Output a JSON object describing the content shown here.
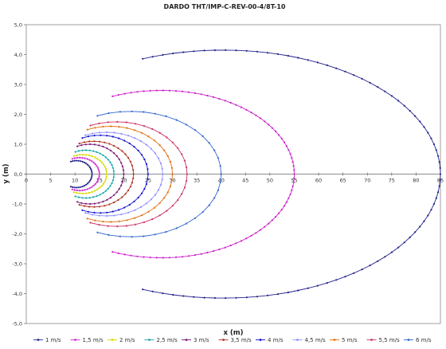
{
  "chart_data": {
    "type": "line",
    "title": "DARDO THT/IMP-C-REV-00-4/8T-10",
    "xlabel": "x (m)",
    "ylabel": "y (m)",
    "xlim": [
      0,
      85
    ],
    "ylim": [
      -5.0,
      5.0
    ],
    "xticks": [
      "0",
      "5",
      "10",
      "15",
      "20",
      "25",
      "30",
      "35",
      "40",
      "45",
      "50",
      "55",
      "60",
      "65",
      "70",
      "75",
      "80",
      "85"
    ],
    "yticks": [
      "5,0",
      "4,0",
      "3,0",
      "2,0",
      "1,0",
      "0,0",
      "-1,0",
      "-2,0",
      "-3,0",
      "-4,0",
      "-5,0"
    ],
    "grid": false,
    "legend_position": "bottom",
    "series": [
      {
        "name": "1 m/s",
        "color": "#2a2a8c",
        "marker": "circle",
        "x0": 8,
        "x_end": 13.5,
        "y_max": 0.45
      },
      {
        "name": "1,5 m/s",
        "color": "#d02bd0",
        "marker": "square",
        "x0": 8,
        "x_end": 15,
        "y_max": 0.55
      },
      {
        "name": "2 m/s",
        "color": "#d8d800",
        "marker": "triangle",
        "x0": 8,
        "x_end": 16.5,
        "y_max": 0.65
      },
      {
        "name": "2,5 m/s",
        "color": "#1aa8a8",
        "marker": "x",
        "x0": 8,
        "x_end": 18,
        "y_max": 0.8
      },
      {
        "name": "3 m/s",
        "color": "#7a1a7a",
        "marker": "star",
        "x0": 8,
        "x_end": 20,
        "y_max": 1.0
      },
      {
        "name": "3,5 m/s",
        "color": "#b03020",
        "marker": "circle",
        "x0": 8,
        "x_end": 22,
        "y_max": 1.1
      },
      {
        "name": "4 m/s",
        "color": "#1010d0",
        "marker": "plus",
        "x0": 8,
        "x_end": 25,
        "y_max": 1.3
      },
      {
        "name": "4,5 m/s",
        "color": "#9090ff",
        "marker": "dash",
        "x0": 8,
        "x_end": 28,
        "y_max": 1.4
      },
      {
        "name": "5 m/s",
        "color": "#e07010",
        "marker": "diamond",
        "x0": 8,
        "x_end": 30,
        "y_max": 1.6
      },
      {
        "name": "5,5 m/s",
        "color": "#cc3366",
        "marker": "circle",
        "x0": 8,
        "x_end": 33,
        "y_max": 1.75
      },
      {
        "name": "6 m/s",
        "color": "#3366cc",
        "marker": "circle",
        "x0": 8,
        "x_end": 40,
        "y_max": 2.1
      }
    ],
    "outer_series": [
      {
        "name": "",
        "color": "#cc22cc",
        "marker": "square",
        "x0": 8,
        "x_end": 55,
        "y_max": 2.8
      },
      {
        "name": "",
        "color": "#22228a",
        "marker": "circle",
        "x0": 8,
        "x_end": 85,
        "y_max": 4.15
      }
    ]
  }
}
